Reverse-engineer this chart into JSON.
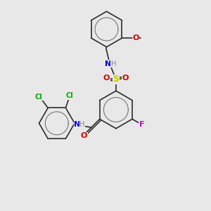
{
  "background_color": "#e8e8e8",
  "bond_color": "#2d2d2d",
  "figsize": [
    3.0,
    3.0
  ],
  "dpi": 100,
  "atoms": {
    "F": {
      "color": "#cc00cc",
      "fontsize": 8
    },
    "O": {
      "color": "#cc0000",
      "fontsize": 8
    },
    "N": {
      "color": "#0000cc",
      "fontsize": 8
    },
    "S": {
      "color": "#cccc00",
      "fontsize": 9
    },
    "Cl": {
      "color": "#00aa00",
      "fontsize": 7
    },
    "H": {
      "color": "#888888",
      "fontsize": 7
    },
    "C": {
      "color": "#2d2d2d",
      "fontsize": 7
    }
  }
}
